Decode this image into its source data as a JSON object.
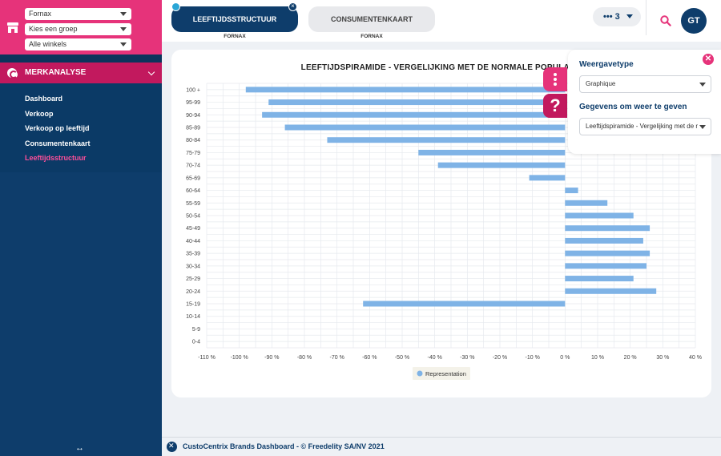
{
  "sidebar": {
    "selects": [
      {
        "value": "Fornax"
      },
      {
        "value": "Kies een groep"
      },
      {
        "value": "Alle winkels"
      }
    ],
    "section_label": "MERKANALYSE",
    "nav_items": [
      {
        "label": "Dashboard",
        "active": false
      },
      {
        "label": "Verkoop",
        "active": false
      },
      {
        "label": "Verkoop op leeftijd",
        "active": false
      },
      {
        "label": "Consumentenkaart",
        "active": false
      },
      {
        "label": "Leeftijdsstructuur",
        "active": true
      }
    ],
    "resize_glyph": "↔"
  },
  "header": {
    "tabs": [
      {
        "label": "LEEFTIJDSSTRUCTUUR",
        "sub": "FORNAX",
        "active": true
      },
      {
        "label": "CONSUMENTENKAART",
        "sub": "FORNAX",
        "active": false
      }
    ],
    "more_label": "••• 3",
    "avatar_initials": "GT"
  },
  "panel": {
    "display_type_label": "Weergavetype",
    "display_type_value": "Graphique",
    "data_label": "Gegevens om weer te geven",
    "data_value": "Leeftijdspiramide - Vergelijking met de normale populatie"
  },
  "side_buttons": {
    "help_glyph": "?"
  },
  "footer": {
    "text": "CustoCentrix Brands Dashboard - © Freedelity SA/NV 2021"
  },
  "colors": {
    "accent": "#e6337a",
    "navy": "#0e3d6b",
    "bar": "#7fb3e6"
  },
  "chart_data": {
    "type": "bar",
    "orientation": "horizontal",
    "title": "LEEFTIJDSPIRAMIDE - VERGELIJKING MET DE NORMALE POPULATIE",
    "categories": [
      "100 +",
      "95-99",
      "90-94",
      "85-89",
      "80-84",
      "75-79",
      "70-74",
      "65-69",
      "60-64",
      "55-59",
      "50-54",
      "45-49",
      "40-44",
      "35-39",
      "30-34",
      "25-29",
      "20-24",
      "15-19",
      "10-14",
      "5-9",
      "0-4"
    ],
    "series": [
      {
        "name": "Representation",
        "values": [
          -98,
          -91,
          -93,
          -86,
          -73,
          -45,
          -39,
          -11,
          4,
          13,
          21,
          26,
          24,
          26,
          25,
          21,
          28,
          -62,
          0,
          0,
          0
        ]
      }
    ],
    "xlim": [
      -110,
      40
    ],
    "xticks": [
      -110,
      -100,
      -90,
      -80,
      -70,
      -60,
      -50,
      -40,
      -30,
      -20,
      -10,
      0,
      10,
      20,
      30,
      40
    ],
    "xtick_labels": [
      "-110 %",
      "-100 %",
      "-90 %",
      "-80 %",
      "-70 %",
      "-60 %",
      "-50 %",
      "-40 %",
      "-30 %",
      "-20 %",
      "-10 %",
      "0 %",
      "10 %",
      "20 %",
      "30 %",
      "40 %"
    ],
    "grid": true,
    "legend": "bottom-center"
  }
}
